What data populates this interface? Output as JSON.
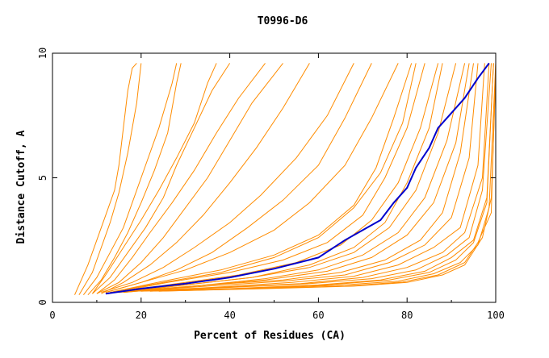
{
  "chart_data": {
    "type": "line",
    "title": "T0996-D6",
    "xlabel": "Percent of Residues (CA)",
    "ylabel": "Distance Cutoff, A",
    "xlim": [
      0,
      100
    ],
    "ylim": [
      0,
      10
    ],
    "x_ticks": [
      "0",
      "20",
      "40",
      "60",
      "80",
      "100"
    ],
    "y_ticks": [
      "0",
      "5",
      "10"
    ],
    "grid": false,
    "legend": "none",
    "colors": {
      "other_models": "#ff8c00",
      "highlighted_model": "#0000cc",
      "axes": "#000000"
    },
    "highlighted_series": {
      "x": [
        12,
        20,
        30,
        40,
        50,
        60,
        66,
        70,
        74,
        77,
        80,
        82,
        85,
        87,
        90,
        93,
        96,
        98.5
      ],
      "y": [
        0.35,
        0.55,
        0.75,
        1.0,
        1.35,
        1.8,
        2.5,
        2.9,
        3.3,
        4.0,
        4.6,
        5.4,
        6.2,
        7.0,
        7.6,
        8.2,
        9.0,
        9.6
      ]
    },
    "other_series": [
      {
        "x": [
          5,
          8,
          10,
          12,
          14,
          15,
          16,
          17,
          18,
          19
        ],
        "y": [
          0.3,
          1.5,
          2.5,
          3.5,
          4.5,
          5.5,
          7.0,
          8.5,
          9.4,
          9.6
        ]
      },
      {
        "x": [
          6,
          9,
          11,
          13,
          15,
          17,
          19,
          20
        ],
        "y": [
          0.3,
          1.2,
          2.2,
          3.2,
          4.4,
          6.0,
          8.0,
          9.6
        ]
      },
      {
        "x": [
          7,
          10,
          13,
          16,
          18,
          21,
          24,
          27,
          28
        ],
        "y": [
          0.3,
          1.0,
          2.0,
          3.0,
          4.0,
          5.5,
          7.0,
          8.8,
          9.6
        ]
      },
      {
        "x": [
          8,
          11,
          14,
          17,
          20,
          23,
          26,
          28,
          29
        ],
        "y": [
          0.3,
          0.9,
          1.8,
          2.8,
          4.0,
          5.3,
          6.8,
          8.8,
          9.6
        ]
      },
      {
        "x": [
          9,
          13,
          17,
          21,
          25,
          28,
          32,
          36,
          40
        ],
        "y": [
          0.35,
          1.0,
          2.0,
          3.0,
          4.2,
          5.5,
          7.0,
          8.5,
          9.6
        ]
      },
      {
        "x": [
          9,
          12,
          16,
          20,
          24,
          28,
          32,
          35,
          37
        ],
        "y": [
          0.35,
          1.1,
          2.2,
          3.3,
          4.5,
          5.8,
          7.2,
          8.8,
          9.6
        ]
      },
      {
        "x": [
          10,
          14,
          18,
          22,
          27,
          32,
          37,
          42,
          48
        ],
        "y": [
          0.35,
          0.9,
          1.8,
          2.8,
          4.0,
          5.3,
          6.8,
          8.2,
          9.6
        ]
      },
      {
        "x": [
          10,
          15,
          20,
          25,
          30,
          35,
          40,
          45,
          52
        ],
        "y": [
          0.35,
          0.8,
          1.6,
          2.6,
          3.8,
          5.0,
          6.5,
          8.0,
          9.6
        ]
      },
      {
        "x": [
          11,
          16,
          22,
          28,
          34,
          40,
          46,
          52,
          58
        ],
        "y": [
          0.35,
          0.8,
          1.5,
          2.4,
          3.5,
          4.8,
          6.2,
          7.8,
          9.6
        ]
      },
      {
        "x": [
          11,
          18,
          25,
          32,
          40,
          47,
          55,
          62,
          68
        ],
        "y": [
          0.4,
          0.8,
          1.4,
          2.2,
          3.2,
          4.3,
          5.8,
          7.5,
          9.6
        ]
      },
      {
        "x": [
          12,
          20,
          28,
          36,
          44,
          52,
          60,
          66,
          72
        ],
        "y": [
          0.4,
          0.8,
          1.3,
          2.0,
          3.0,
          4.1,
          5.5,
          7.4,
          9.6
        ]
      },
      {
        "x": [
          12,
          20,
          30,
          40,
          50,
          58,
          66,
          72,
          78
        ],
        "y": [
          0.4,
          0.8,
          1.3,
          2.0,
          2.9,
          4.0,
          5.5,
          7.4,
          9.6
        ]
      },
      {
        "x": [
          13,
          25,
          38,
          50,
          60,
          68,
          74,
          79,
          82
        ],
        "y": [
          0.4,
          0.8,
          1.2,
          1.8,
          2.6,
          3.8,
          5.2,
          7.2,
          9.6
        ]
      },
      {
        "x": [
          13,
          25,
          38,
          50,
          60,
          68,
          73,
          77,
          81
        ],
        "y": [
          0.4,
          0.85,
          1.3,
          1.9,
          2.7,
          3.9,
          5.4,
          7.4,
          9.6
        ]
      },
      {
        "x": [
          14,
          26,
          40,
          52,
          62,
          70,
          75,
          80,
          84
        ],
        "y": [
          0.4,
          0.8,
          1.2,
          1.7,
          2.4,
          3.5,
          5.0,
          7.0,
          9.6
        ]
      },
      {
        "x": [
          14,
          28,
          42,
          55,
          65,
          72,
          78,
          83,
          87
        ],
        "y": [
          0.4,
          0.75,
          1.1,
          1.6,
          2.3,
          3.3,
          4.8,
          7.0,
          9.6
        ]
      },
      {
        "x": [
          15,
          30,
          45,
          58,
          68,
          75,
          80,
          85,
          88
        ],
        "y": [
          0.4,
          0.7,
          1.0,
          1.5,
          2.2,
          3.2,
          4.8,
          7.0,
          9.6
        ]
      },
      {
        "x": [
          15,
          30,
          45,
          58,
          68,
          76,
          82,
          87,
          91
        ],
        "y": [
          0.4,
          0.7,
          1.0,
          1.4,
          2.0,
          3.0,
          4.5,
          6.8,
          9.6
        ]
      },
      {
        "x": [
          16,
          32,
          48,
          60,
          70,
          78,
          84,
          89,
          93
        ],
        "y": [
          0.4,
          0.65,
          0.95,
          1.3,
          1.9,
          2.8,
          4.2,
          6.5,
          9.6
        ]
      },
      {
        "x": [
          16,
          32,
          48,
          62,
          72,
          80,
          86,
          91,
          94
        ],
        "y": [
          0.4,
          0.65,
          0.9,
          1.25,
          1.8,
          2.7,
          4.0,
          6.4,
          9.6
        ]
      },
      {
        "x": [
          17,
          35,
          52,
          65,
          75,
          83,
          88,
          92,
          95
        ],
        "y": [
          0.45,
          0.7,
          0.9,
          1.2,
          1.7,
          2.5,
          3.6,
          6.0,
          9.6
        ]
      },
      {
        "x": [
          18,
          35,
          52,
          66,
          76,
          84,
          90,
          94,
          96
        ],
        "y": [
          0.45,
          0.65,
          0.85,
          1.1,
          1.6,
          2.3,
          3.4,
          5.8,
          9.6
        ]
      },
      {
        "x": [
          18,
          36,
          54,
          68,
          78,
          86,
          92,
          96,
          97.5
        ],
        "y": [
          0.45,
          0.6,
          0.8,
          1.05,
          1.5,
          2.2,
          3.0,
          5.5,
          9.6
        ]
      },
      {
        "x": [
          19,
          38,
          56,
          70,
          80,
          88,
          93,
          97,
          98.5
        ],
        "y": [
          0.45,
          0.6,
          0.75,
          1.0,
          1.4,
          2.0,
          2.8,
          5.0,
          9.6
        ]
      },
      {
        "x": [
          20,
          40,
          58,
          72,
          82,
          89,
          94,
          97,
          99
        ],
        "y": [
          0.45,
          0.6,
          0.75,
          0.95,
          1.3,
          1.9,
          2.6,
          4.5,
          9.6
        ]
      },
      {
        "x": [
          20,
          40,
          60,
          74,
          84,
          90,
          95,
          98,
          99.5
        ],
        "y": [
          0.45,
          0.55,
          0.7,
          0.9,
          1.25,
          1.8,
          2.5,
          4.2,
          9.6
        ]
      },
      {
        "x": [
          22,
          42,
          62,
          76,
          85,
          91,
          95,
          98,
          99.5
        ],
        "y": [
          0.45,
          0.55,
          0.7,
          0.9,
          1.2,
          1.7,
          2.4,
          4.0,
          9.6
        ]
      },
      {
        "x": [
          22,
          44,
          64,
          78,
          86,
          92,
          96,
          98.5,
          100
        ],
        "y": [
          0.45,
          0.55,
          0.68,
          0.85,
          1.15,
          1.6,
          2.3,
          3.8,
          9.6
        ]
      },
      {
        "x": [
          24,
          46,
          66,
          79,
          87,
          93,
          96,
          99,
          100
        ],
        "y": [
          0.45,
          0.55,
          0.65,
          0.82,
          1.1,
          1.6,
          2.4,
          3.6,
          9.6
        ]
      },
      {
        "x": [
          24,
          48,
          68,
          80,
          88,
          93,
          97,
          99,
          100
        ],
        "y": [
          0.45,
          0.55,
          0.65,
          0.8,
          1.1,
          1.5,
          2.6,
          4.2,
          9.0
        ]
      }
    ]
  }
}
